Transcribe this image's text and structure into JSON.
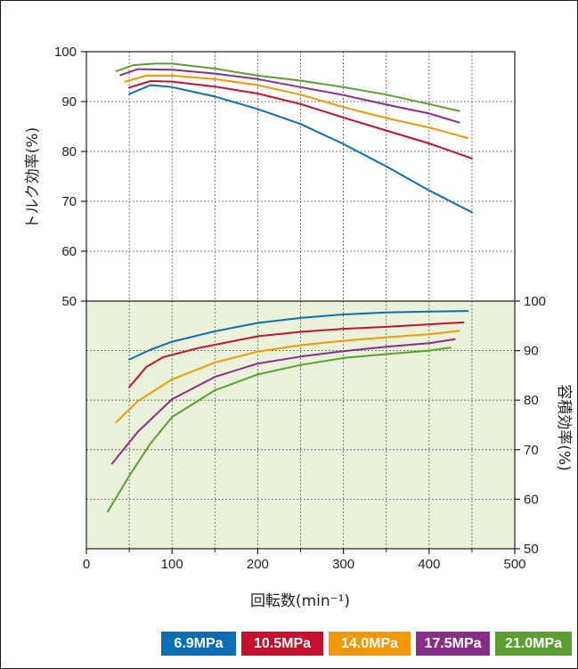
{
  "chart_data": {
    "type": "line",
    "xlabel": "回転数(min⁻¹)",
    "x_ticks": [
      "0",
      "100",
      "200",
      "300",
      "400",
      "500"
    ],
    "xlim": [
      0,
      500
    ],
    "grid": true,
    "legend_position": "bottom-right",
    "panels": [
      {
        "name": "torque_efficiency",
        "ylabel": "トルク効率(%)",
        "ylim": [
          50,
          100
        ],
        "y_ticks": [
          "50",
          "60",
          "70",
          "80",
          "90",
          "100"
        ],
        "y_axis_side": "left",
        "series": [
          {
            "name": "6.9MPa",
            "color": "#0a6eb4",
            "points": [
              [
                50,
                91.5
              ],
              [
                75,
                93.3
              ],
              [
                100,
                92.9
              ],
              [
                150,
                91
              ],
              [
                200,
                88.5
              ],
              [
                250,
                85.5
              ],
              [
                300,
                81.5
              ],
              [
                350,
                77
              ],
              [
                400,
                72.2
              ],
              [
                450,
                67.8
              ]
            ]
          },
          {
            "name": "10.5MPa",
            "color": "#c8102e",
            "points": [
              [
                50,
                92.8
              ],
              [
                75,
                94.1
              ],
              [
                100,
                94
              ],
              [
                150,
                93
              ],
              [
                200,
                91.6
              ],
              [
                250,
                89.5
              ],
              [
                300,
                86.8
              ],
              [
                350,
                84.2
              ],
              [
                400,
                81.6
              ],
              [
                450,
                78.6
              ]
            ]
          },
          {
            "name": "14.0MPa",
            "color": "#f39800",
            "points": [
              [
                45,
                94
              ],
              [
                70,
                95.2
              ],
              [
                100,
                95.2
              ],
              [
                150,
                94.5
              ],
              [
                200,
                93.3
              ],
              [
                250,
                91.4
              ],
              [
                300,
                88.9
              ],
              [
                350,
                86.7
              ],
              [
                400,
                84.8
              ],
              [
                445,
                82.7
              ]
            ]
          },
          {
            "name": "17.5MPa",
            "color": "#8b2b8c",
            "points": [
              [
                40,
                95.3
              ],
              [
                60,
                96.5
              ],
              [
                100,
                96.4
              ],
              [
                150,
                95.6
              ],
              [
                200,
                94.5
              ],
              [
                250,
                92.9
              ],
              [
                300,
                91.3
              ],
              [
                350,
                89.4
              ],
              [
                400,
                87.6
              ],
              [
                435,
                85.8
              ]
            ]
          },
          {
            "name": "21.0MPa",
            "color": "#5aa02c",
            "points": [
              [
                35,
                96.1
              ],
              [
                55,
                97.3
              ],
              [
                80,
                97.6
              ],
              [
                100,
                97.6
              ],
              [
                150,
                96.6
              ],
              [
                200,
                95.2
              ],
              [
                250,
                94.2
              ],
              [
                300,
                92.9
              ],
              [
                350,
                91.4
              ],
              [
                400,
                89.5
              ],
              [
                435,
                88.1
              ]
            ]
          }
        ]
      },
      {
        "name": "volumetric_efficiency",
        "ylabel": "容積効率(%)",
        "ylim": [
          50,
          100
        ],
        "y_ticks": [
          "50",
          "60",
          "70",
          "80",
          "90",
          "100"
        ],
        "y_axis_side": "right",
        "background": "#e9f2d9",
        "series": [
          {
            "name": "6.9MPa",
            "color": "#0a6eb4",
            "points": [
              [
                50,
                88.2
              ],
              [
                75,
                90.2
              ],
              [
                100,
                91.8
              ],
              [
                150,
                93.9
              ],
              [
                200,
                95.6
              ],
              [
                250,
                96.6
              ],
              [
                300,
                97.3
              ],
              [
                350,
                97.7
              ],
              [
                400,
                97.9
              ],
              [
                445,
                98.0
              ]
            ]
          },
          {
            "name": "10.5MPa",
            "color": "#c8102e",
            "points": [
              [
                50,
                82.6
              ],
              [
                70,
                86.7
              ],
              [
                90,
                88.7
              ],
              [
                130,
                90.5
              ],
              [
                200,
                92.9
              ],
              [
                250,
                93.8
              ],
              [
                300,
                94.4
              ],
              [
                350,
                94.8
              ],
              [
                400,
                95.3
              ],
              [
                440,
                95.7
              ]
            ]
          },
          {
            "name": "14.0MPa",
            "color": "#f39800",
            "points": [
              [
                35,
                75.6
              ],
              [
                60,
                79.8
              ],
              [
                100,
                84.2
              ],
              [
                150,
                87.6
              ],
              [
                200,
                89.8
              ],
              [
                250,
                91.1
              ],
              [
                300,
                92.0
              ],
              [
                350,
                92.7
              ],
              [
                400,
                93.3
              ],
              [
                435,
                94.0
              ]
            ]
          },
          {
            "name": "17.5MPa",
            "color": "#8b2b8c",
            "points": [
              [
                30,
                67.2
              ],
              [
                60,
                73.6
              ],
              [
                100,
                80.2
              ],
              [
                150,
                84.7
              ],
              [
                200,
                87.4
              ],
              [
                250,
                88.8
              ],
              [
                300,
                89.9
              ],
              [
                350,
                90.8
              ],
              [
                400,
                91.5
              ],
              [
                430,
                92.3
              ]
            ]
          },
          {
            "name": "21.0MPa",
            "color": "#5aa02c",
            "points": [
              [
                25,
                57.5
              ],
              [
                50,
                64.7
              ],
              [
                75,
                71.3
              ],
              [
                100,
                76.6
              ],
              [
                150,
                82.0
              ],
              [
                200,
                85.2
              ],
              [
                250,
                87.1
              ],
              [
                300,
                88.5
              ],
              [
                350,
                89.3
              ],
              [
                400,
                90.0
              ],
              [
                425,
                90.6
              ]
            ]
          }
        ]
      }
    ]
  },
  "legend": [
    {
      "label": "6.9MPa",
      "color": "#0a6eb4"
    },
    {
      "label": "10.5MPa",
      "color": "#c8102e"
    },
    {
      "label": "14.0MPa",
      "color": "#f39800"
    },
    {
      "label": "17.5MPa",
      "color": "#8b2b8c"
    },
    {
      "label": "21.0MPa",
      "color": "#5aa02c"
    }
  ]
}
